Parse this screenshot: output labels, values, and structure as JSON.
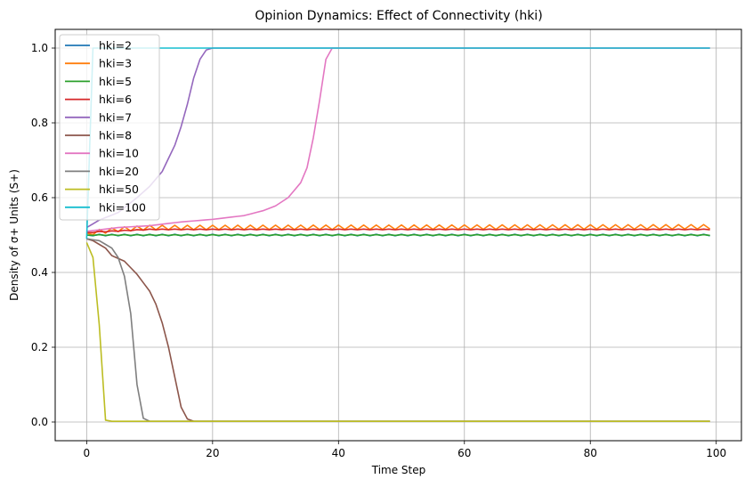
{
  "chart_data": {
    "type": "line",
    "title": "Opinion Dynamics: Effect of Connectivity (hki)",
    "xlabel": "Time Step",
    "ylabel": "Density of σ+ Units (S+)",
    "xlim": [
      -5,
      104
    ],
    "ylim": [
      -0.05,
      1.05
    ],
    "x_ticks": [
      0,
      20,
      40,
      60,
      80,
      100
    ],
    "y_ticks": [
      0.0,
      0.2,
      0.4,
      0.6,
      0.8,
      1.0
    ],
    "x_tick_labels": [
      "0",
      "20",
      "40",
      "60",
      "80",
      "100"
    ],
    "y_tick_labels": [
      "0.0",
      "0.2",
      "0.4",
      "0.6",
      "0.8",
      "1.0"
    ],
    "grid": true,
    "legend_position": "top-left",
    "x_max_step": 99,
    "series": [
      {
        "name": "hki=2",
        "color": "#1f77b4",
        "keyframes": [
          [
            0,
            0.5
          ],
          [
            99,
            0.5
          ]
        ],
        "oscillation": 0.002
      },
      {
        "name": "hki=3",
        "color": "#ff7f0e",
        "keyframes": [
          [
            0,
            0.505
          ],
          [
            5,
            0.515
          ],
          [
            10,
            0.52
          ],
          [
            99,
            0.522
          ]
        ],
        "oscillation": 0.006
      },
      {
        "name": "hki=5",
        "color": "#2ca02c",
        "keyframes": [
          [
            0,
            0.5
          ],
          [
            99,
            0.5
          ]
        ],
        "oscillation": 0.001
      },
      {
        "name": "hki=6",
        "color": "#d62728",
        "keyframes": [
          [
            0,
            0.507
          ],
          [
            10,
            0.515
          ],
          [
            99,
            0.515
          ]
        ],
        "oscillation": 0.001
      },
      {
        "name": "hki=7",
        "color": "#9467bd",
        "keyframes": [
          [
            0,
            0.52
          ],
          [
            2,
            0.54
          ],
          [
            5,
            0.56
          ],
          [
            8,
            0.6
          ],
          [
            10,
            0.63
          ],
          [
            12,
            0.67
          ],
          [
            14,
            0.74
          ],
          [
            15,
            0.79
          ],
          [
            16,
            0.85
          ],
          [
            17,
            0.92
          ],
          [
            18,
            0.97
          ],
          [
            19,
            0.995
          ],
          [
            20,
            1.0
          ],
          [
            99,
            1.0
          ]
        ]
      },
      {
        "name": "hki=8",
        "color": "#8c564b",
        "keyframes": [
          [
            0,
            0.49
          ],
          [
            1,
            0.485
          ],
          [
            3,
            0.465
          ],
          [
            4,
            0.445
          ],
          [
            6,
            0.43
          ],
          [
            8,
            0.395
          ],
          [
            10,
            0.35
          ],
          [
            11,
            0.315
          ],
          [
            12,
            0.265
          ],
          [
            13,
            0.2
          ],
          [
            14,
            0.12
          ],
          [
            15,
            0.04
          ],
          [
            16,
            0.008
          ],
          [
            17,
            0.002
          ],
          [
            99,
            0.002
          ]
        ]
      },
      {
        "name": "hki=10",
        "color": "#e377c2",
        "keyframes": [
          [
            0,
            0.51
          ],
          [
            5,
            0.52
          ],
          [
            10,
            0.525
          ],
          [
            15,
            0.535
          ],
          [
            20,
            0.542
          ],
          [
            25,
            0.552
          ],
          [
            28,
            0.565
          ],
          [
            30,
            0.578
          ],
          [
            32,
            0.6
          ],
          [
            34,
            0.64
          ],
          [
            35,
            0.68
          ],
          [
            36,
            0.76
          ],
          [
            37,
            0.86
          ],
          [
            38,
            0.97
          ],
          [
            39,
            1.0
          ],
          [
            99,
            1.0
          ]
        ]
      },
      {
        "name": "hki=20",
        "color": "#7f7f7f",
        "keyframes": [
          [
            0,
            0.49
          ],
          [
            2,
            0.485
          ],
          [
            4,
            0.465
          ],
          [
            5,
            0.44
          ],
          [
            6,
            0.39
          ],
          [
            7,
            0.29
          ],
          [
            8,
            0.1
          ],
          [
            9,
            0.01
          ],
          [
            10,
            0.002
          ],
          [
            99,
            0.002
          ]
        ]
      },
      {
        "name": "hki=50",
        "color": "#bcbd22",
        "keyframes": [
          [
            0,
            0.48
          ],
          [
            1,
            0.44
          ],
          [
            2,
            0.26
          ],
          [
            3,
            0.005
          ],
          [
            4,
            0.002
          ],
          [
            99,
            0.002
          ]
        ]
      },
      {
        "name": "hki=100",
        "color": "#17becf",
        "keyframes": [
          [
            0,
            0.49
          ],
          [
            1,
            1.0
          ],
          [
            99,
            1.0
          ]
        ]
      }
    ]
  }
}
